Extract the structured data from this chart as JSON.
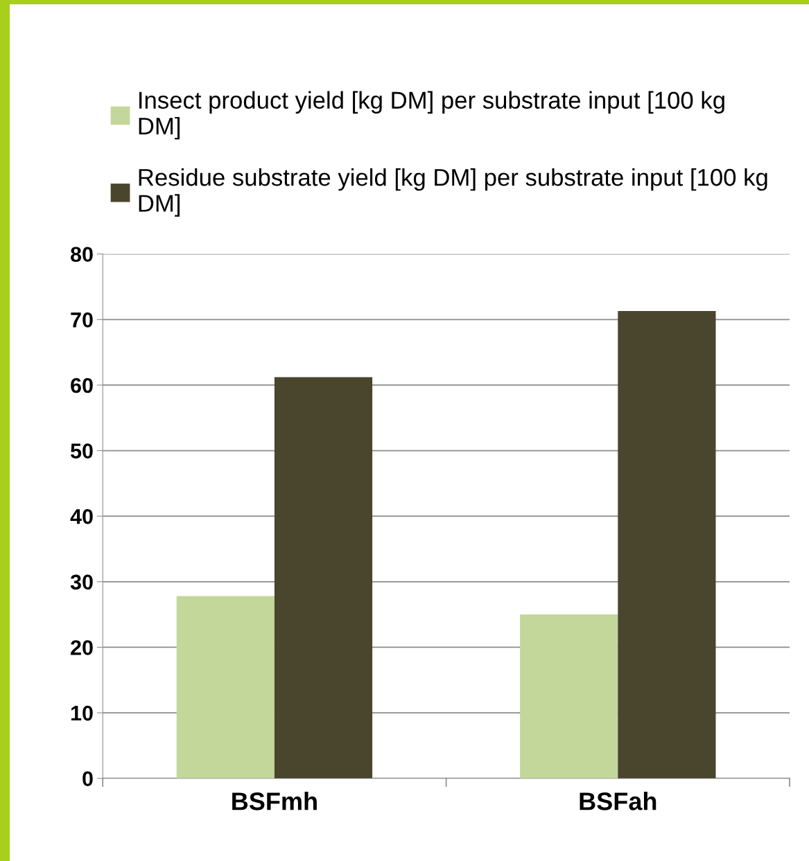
{
  "chart_data": {
    "type": "bar",
    "categories": [
      "BSFmh",
      "BSFah"
    ],
    "series": [
      {
        "name": "Insect product yield [kg DM] per substrate input [100 kg DM]",
        "color": "#c4d79b",
        "values": [
          27.8,
          25.0
        ]
      },
      {
        "name": "Residue substrate yield [kg DM] per substrate input [100 kg DM]",
        "color": "#4a452d",
        "values": [
          61.2,
          71.3
        ]
      }
    ],
    "ylim": [
      0,
      80
    ],
    "yticks": [
      0,
      10,
      20,
      30,
      40,
      50,
      60,
      70,
      80
    ],
    "grid": "y",
    "legend": "top"
  }
}
